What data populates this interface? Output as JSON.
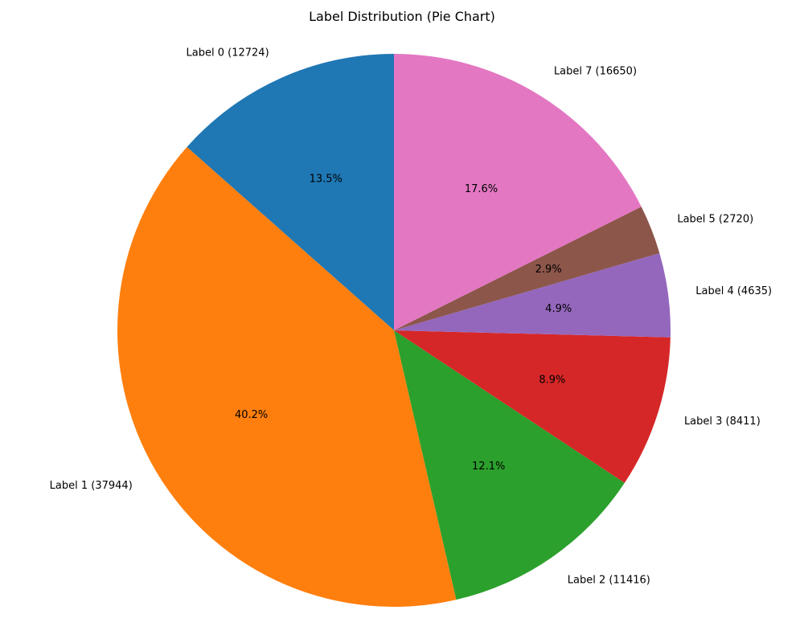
{
  "chart_data": {
    "type": "pie",
    "title": "Label Distribution (Pie Chart)",
    "start_angle_deg": 90,
    "direction": "counterclockwise",
    "slices": [
      {
        "label": "Label 0 (12724)",
        "value": 12724,
        "percent_label": "13.5%",
        "color": "#1f77b4"
      },
      {
        "label": "Label 1 (37944)",
        "value": 37944,
        "percent_label": "40.2%",
        "color": "#ff7f0e"
      },
      {
        "label": "Label 2 (11416)",
        "value": 11416,
        "percent_label": "12.1%",
        "color": "#2ca02c"
      },
      {
        "label": "Label 3 (8411)",
        "value": 8411,
        "percent_label": "8.9%",
        "color": "#d62728"
      },
      {
        "label": "Label 4 (4635)",
        "value": 4635,
        "percent_label": "4.9%",
        "color": "#9467bd"
      },
      {
        "label": "Label 5 (2720)",
        "value": 2720,
        "percent_label": "2.9%",
        "color": "#8c564b"
      },
      {
        "label": "Label 7 (16650)",
        "value": 16650,
        "percent_label": "17.6%",
        "color": "#e377c2"
      }
    ]
  }
}
